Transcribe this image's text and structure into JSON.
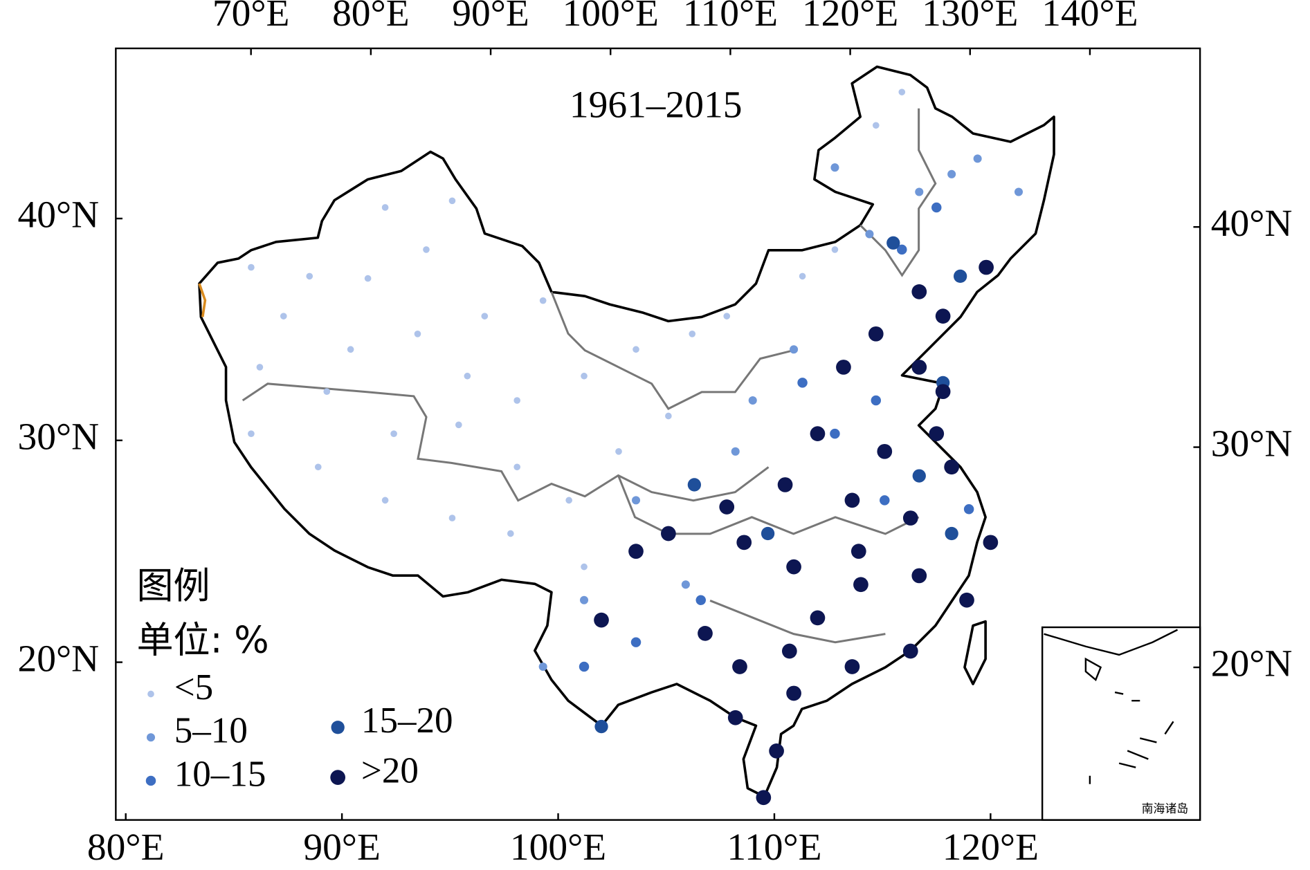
{
  "chart_data": {
    "type": "scatter",
    "title": "1961–2015",
    "legend_title": "图例",
    "legend_unit": "单位: %",
    "inset_label": "南海诸岛",
    "xlim": [
      79.54,
      129.69
    ],
    "ylim": [
      12.89,
      47.67
    ],
    "xticks": [
      {
        "value": 80,
        "label": "80°E"
      },
      {
        "value": 90,
        "label": "90°E"
      },
      {
        "value": 100,
        "label": "100°E"
      },
      {
        "value": 110,
        "label": "110°E"
      },
      {
        "value": 120,
        "label": "120°E"
      }
    ],
    "yticks": [
      {
        "value": 20,
        "label": "20°N"
      },
      {
        "value": 30,
        "label": "30°N"
      },
      {
        "value": 40,
        "label": "40°N"
      }
    ],
    "x2lim": [
      58.72,
      149.19
    ],
    "x2ticks": [
      {
        "value": 70,
        "label": "70°E"
      },
      {
        "value": 80,
        "label": "80°E"
      },
      {
        "value": 90,
        "label": "90°E"
      },
      {
        "value": 100,
        "label": "100°E"
      },
      {
        "value": 110,
        "label": "110°E"
      },
      {
        "value": 120,
        "label": "120°E"
      },
      {
        "value": 130,
        "label": "130°E"
      },
      {
        "value": 140,
        "label": "140°E"
      }
    ],
    "y2lim": [
      13.07,
      48.11
    ],
    "y2ticks": [
      {
        "value": 20,
        "label": "20°N"
      },
      {
        "value": 30,
        "label": "30°N"
      },
      {
        "value": 40,
        "label": "40°N"
      }
    ],
    "classes": [
      {
        "name": "<5",
        "color": "#aec3ea",
        "size": 4
      },
      {
        "name": "5–10",
        "color": "#6f97d8",
        "size": 5
      },
      {
        "name": "10–15",
        "color": "#3d6ec2",
        "size": 6
      },
      {
        "name": "15–20",
        "color": "#1f4f9a",
        "size": 8
      },
      {
        "name": ">20",
        "color": "#0d1652",
        "size": 9
      }
    ],
    "lon": [
      85.8,
      88.5,
      91.2,
      93.9,
      92.0,
      95.1,
      87.3,
      90.4,
      93.5,
      96.6,
      99.3,
      86.2,
      89.3,
      92.4,
      95.4,
      98.1,
      101.2,
      103.6,
      106.2,
      85.8,
      88.9,
      92.0,
      95.1,
      97.8,
      100.5,
      102.8,
      105.1,
      101.2,
      98.1,
      95.8,
      107.8,
      111.3,
      112.8,
      114.7,
      115.9,
      112.8,
      116.7,
      119.4,
      121.3,
      110.9,
      109.0,
      108.2,
      103.6,
      101.2,
      99.3,
      105.9,
      114.4,
      118.2,
      115.9,
      117.5,
      111.3,
      112.8,
      101.2,
      103.6,
      106.6,
      115.1,
      114.7,
      119.0,
      115.5,
      118.6,
      117.8,
      106.3,
      109.7,
      116.7,
      102.0,
      118.2,
      116.7,
      117.8,
      119.8,
      114.7,
      113.2,
      112.0,
      115.1,
      117.5,
      110.5,
      113.6,
      116.3,
      108.6,
      110.9,
      114.0,
      116.7,
      105.1,
      103.6,
      106.8,
      108.4,
      110.7,
      113.6,
      116.3,
      118.9,
      120.0,
      118.2,
      108.2,
      110.1,
      109.5,
      102.0,
      110.9,
      113.9,
      112.0,
      107.8,
      116.7,
      117.8
    ],
    "lat": [
      37.8,
      37.4,
      37.3,
      38.6,
      40.5,
      40.8,
      35.6,
      34.1,
      34.8,
      35.6,
      36.3,
      33.3,
      32.2,
      30.3,
      30.7,
      31.8,
      32.9,
      34.1,
      34.8,
      30.3,
      28.8,
      27.3,
      26.5,
      25.8,
      27.3,
      29.5,
      31.1,
      24.3,
      28.8,
      32.9,
      35.6,
      37.4,
      38.6,
      44.2,
      45.7,
      42.3,
      41.2,
      42.7,
      41.2,
      34.1,
      31.8,
      29.5,
      27.3,
      22.8,
      19.8,
      23.5,
      39.3,
      42.0,
      38.6,
      40.5,
      32.6,
      30.3,
      19.8,
      20.9,
      22.8,
      27.3,
      31.8,
      26.9,
      38.9,
      37.4,
      32.6,
      28.0,
      25.8,
      28.4,
      17.1,
      25.8,
      36.7,
      35.6,
      37.8,
      34.8,
      33.3,
      30.3,
      29.5,
      30.3,
      28.0,
      27.3,
      26.5,
      25.4,
      24.3,
      23.5,
      23.9,
      25.8,
      25.0,
      21.3,
      19.8,
      20.5,
      19.8,
      20.5,
      22.8,
      25.4,
      28.8,
      17.5,
      16.0,
      13.9,
      21.9,
      18.6,
      25.0,
      22.0,
      27.0,
      33.3,
      32.2
    ],
    "class": [
      0,
      0,
      0,
      0,
      0,
      0,
      0,
      0,
      0,
      0,
      0,
      0,
      0,
      0,
      0,
      0,
      0,
      0,
      0,
      0,
      0,
      0,
      0,
      0,
      0,
      0,
      0,
      0,
      0,
      0,
      0,
      0,
      0,
      0,
      0,
      1,
      1,
      1,
      1,
      1,
      1,
      1,
      1,
      1,
      1,
      1,
      1,
      1,
      2,
      2,
      2,
      2,
      2,
      2,
      2,
      2,
      2,
      2,
      3,
      3,
      3,
      3,
      3,
      3,
      3,
      3,
      4,
      4,
      4,
      4,
      4,
      4,
      4,
      4,
      4,
      4,
      4,
      4,
      4,
      4,
      4,
      4,
      4,
      4,
      4,
      4,
      4,
      4,
      4,
      4,
      4,
      4,
      4,
      4,
      4,
      4,
      4,
      4,
      4,
      4,
      4
    ]
  }
}
